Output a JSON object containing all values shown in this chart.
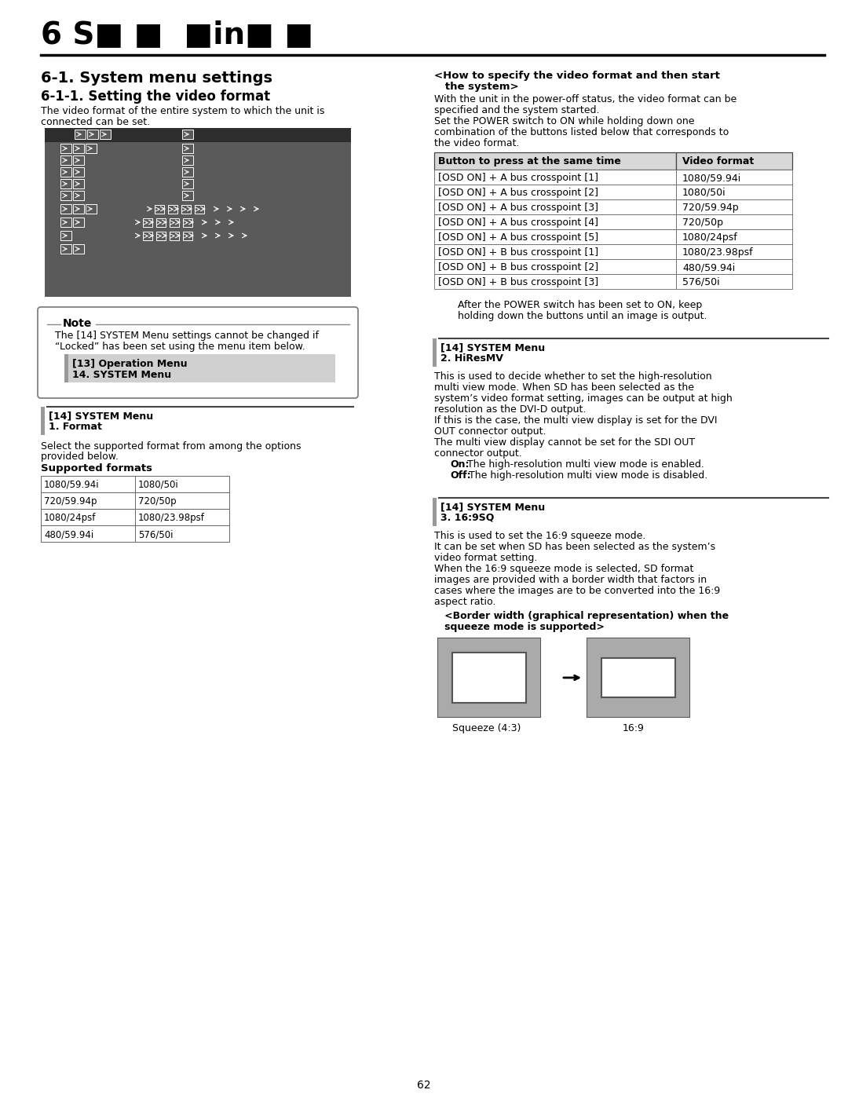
{
  "page_number": "62",
  "bg_color": "#ffffff",
  "header_text": "6 S■ ■  ■in■ ■",
  "section_title": "6-1. System menu settings",
  "subsection_title": "6-1-1. Setting the video format",
  "body_left1": "The video format of the entire system to which the unit is",
  "body_left2": "connected can be set.",
  "note_line1": "The [14] SYSTEM Menu settings cannot be changed if",
  "note_line2": "“Locked” has been set using the menu item below.",
  "note_sub1": "[13] Operation Menu",
  "note_sub2": "14. SYSTEM Menu",
  "system_menu_1_title": "[14] SYSTEM Menu",
  "system_menu_1_sub": "1. Format",
  "format_text1": "Select the supported format from among the options",
  "format_text2": "provided below.",
  "supported_formats_title": "Supported formats",
  "supported_formats": [
    [
      "1080/59.94i",
      "1080/50i"
    ],
    [
      "720/59.94p",
      "720/50p"
    ],
    [
      "1080/24psf",
      "1080/23.98psf"
    ],
    [
      "480/59.94i",
      "576/50i"
    ]
  ],
  "right_title1": "<How to specify the video format and then start",
  "right_title2": "   the system>",
  "right_text": [
    "With the unit in the power-off status, the video format can be",
    "specified and the system started.",
    "Set the POWER switch to ON while holding down one",
    "combination of the buttons listed below that corresponds to",
    "the video format."
  ],
  "table_headers": [
    "Button to press at the same time",
    "Video format"
  ],
  "table_rows": [
    [
      "[OSD ON] + A bus crosspoint [1]",
      "1080/59.94i"
    ],
    [
      "[OSD ON] + A bus crosspoint [2]",
      "1080/50i"
    ],
    [
      "[OSD ON] + A bus crosspoint [3]",
      "720/59.94p"
    ],
    [
      "[OSD ON] + A bus crosspoint [4]",
      "720/50p"
    ],
    [
      "[OSD ON] + A bus crosspoint [5]",
      "1080/24psf"
    ],
    [
      "[OSD ON] + B bus crosspoint [1]",
      "1080/23.98psf"
    ],
    [
      "[OSD ON] + B bus crosspoint [2]",
      "480/59.94i"
    ],
    [
      "[OSD ON] + B bus crosspoint [3]",
      "576/50i"
    ]
  ],
  "after_table1": "After the POWER switch has been set to ON, keep",
  "after_table2": "holding down the buttons until an image is output.",
  "system_menu_2_title": "[14] SYSTEM Menu",
  "system_menu_2_sub": "2. HiResMV",
  "hires_lines": [
    "This is used to decide whether to set the high-resolution",
    "multi view mode. When SD has been selected as the",
    "system’s video format setting, images can be output at high",
    "resolution as the DVI-D output.",
    "If this is the case, the multi view display is set for the DVI",
    "OUT connector output.",
    "The multi view display cannot be set for the SDI OUT",
    "connector output."
  ],
  "on_label": "On:",
  "on_text": "The high-resolution multi view mode is enabled.",
  "off_label": "Off:",
  "off_text": "The high-resolution multi view mode is disabled.",
  "system_menu_3_title": "[14] SYSTEM Menu",
  "system_menu_3_sub": "3. 16:9SQ",
  "sq_lines": [
    "This is used to set the 16:9 squeeze mode.",
    "It can be set when SD has been selected as the system’s",
    "video format setting.",
    "When the 16:9 squeeze mode is selected, SD format",
    "images are provided with a border width that factors in",
    "cases where the images are to be converted into the 16:9",
    "aspect ratio."
  ],
  "border_title1": "   <Border width (graphical representation) when the",
  "border_title2": "   squeeze mode is supported>",
  "squeeze_label": "Squeeze (4:3)",
  "ratio_label": "16:9",
  "dark_gray": "#555555",
  "darker_gray": "#333333",
  "blue_bar_color": "#333399",
  "gray_bar_color": "#999999"
}
